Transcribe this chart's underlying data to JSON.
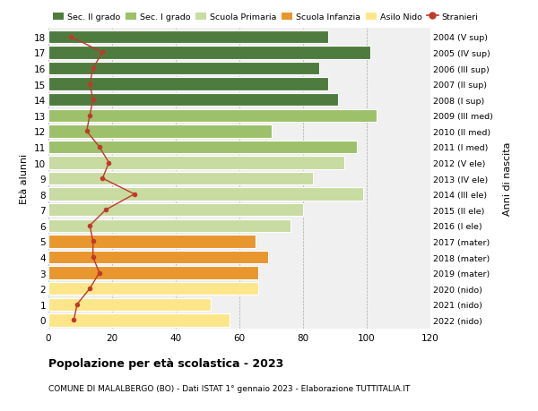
{
  "ages": [
    0,
    1,
    2,
    3,
    4,
    5,
    6,
    7,
    8,
    9,
    10,
    11,
    12,
    13,
    14,
    15,
    16,
    17,
    18
  ],
  "bar_values": [
    57,
    51,
    66,
    66,
    69,
    65,
    76,
    80,
    99,
    83,
    93,
    97,
    70,
    103,
    91,
    88,
    85,
    101,
    88
  ],
  "stranieri": [
    8,
    9,
    13,
    16,
    14,
    14,
    13,
    18,
    27,
    17,
    19,
    16,
    12,
    13,
    14,
    13,
    14,
    17,
    7
  ],
  "right_labels": [
    "2022 (nido)",
    "2021 (nido)",
    "2020 (nido)",
    "2019 (mater)",
    "2018 (mater)",
    "2017 (mater)",
    "2016 (I ele)",
    "2015 (II ele)",
    "2014 (III ele)",
    "2013 (IV ele)",
    "2012 (V ele)",
    "2011 (I med)",
    "2010 (II med)",
    "2009 (III med)",
    "2008 (I sup)",
    "2007 (II sup)",
    "2006 (III sup)",
    "2005 (IV sup)",
    "2004 (V sup)"
  ],
  "bar_colors": [
    "#fde68a",
    "#fde68a",
    "#fde68a",
    "#e8962e",
    "#e8962e",
    "#e8962e",
    "#c8dba0",
    "#c8dba0",
    "#c8dba0",
    "#c8dba0",
    "#c8dba0",
    "#9dc06a",
    "#9dc06a",
    "#9dc06a",
    "#4e7c3f",
    "#4e7c3f",
    "#4e7c3f",
    "#4e7c3f",
    "#4e7c3f"
  ],
  "legend_labels": [
    "Sec. II grado",
    "Sec. I grado",
    "Scuola Primaria",
    "Scuola Infanzia",
    "Asilo Nido",
    "Stranieri"
  ],
  "legend_colors": [
    "#4e7c3f",
    "#9dc06a",
    "#c8dba0",
    "#e8962e",
    "#fde68a",
    "#c0392b"
  ],
  "ylabel_left": "Età alunni",
  "ylabel_right": "Anni di nascita",
  "title": "Popolazione per età scolastica - 2023",
  "subtitle": "COMUNE DI MALALBERGO (BO) - Dati ISTAT 1° gennaio 2023 - Elaborazione TUTTITALIA.IT",
  "xlim": [
    0,
    120
  ],
  "xticks": [
    0,
    20,
    40,
    60,
    80,
    100,
    120
  ],
  "stranieri_color": "#c0392b",
  "bg_color": "#f0f0f0",
  "bar_height": 0.82
}
